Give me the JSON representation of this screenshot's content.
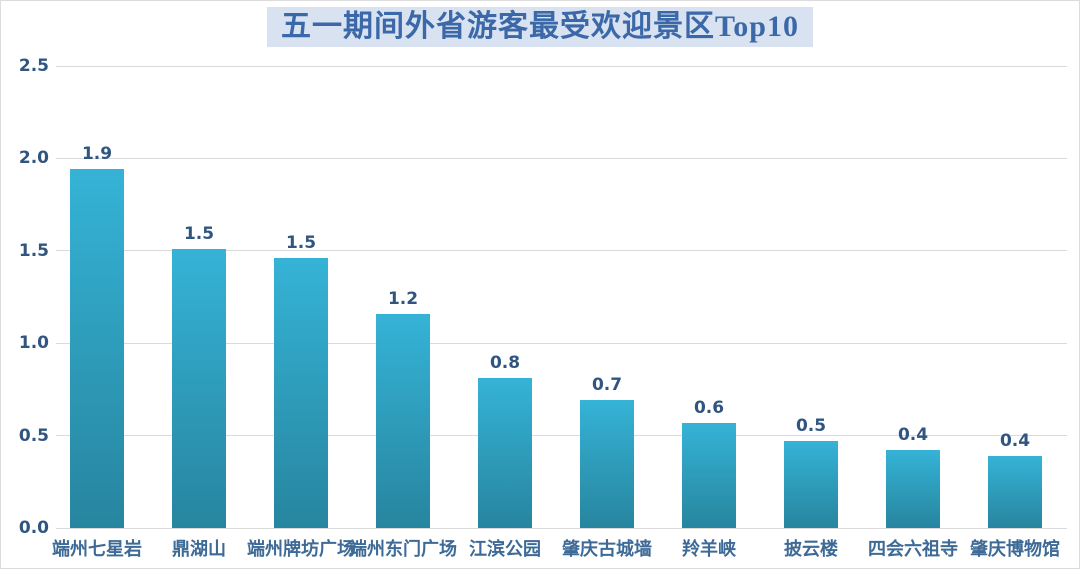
{
  "title": {
    "text": "五一期间外省游客最受欢迎景区Top10",
    "color": "#3a68a8",
    "background": "#d9e2f0"
  },
  "chart_data": {
    "type": "bar",
    "title": "五一期间外省游客最受欢迎景区Top10",
    "categories": [
      "端州七星岩",
      "鼎湖山",
      "端州牌坊广场",
      "端州东门广场",
      "江滨公园",
      "肇庆古城墙",
      "羚羊峡",
      "披云楼",
      "四会六祖寺",
      "肇庆博物馆"
    ],
    "values": [
      1.94,
      1.51,
      1.46,
      1.16,
      0.81,
      0.69,
      0.57,
      0.47,
      0.42,
      0.39
    ],
    "data_labels": [
      "1.9",
      "1.5",
      "1.5",
      "1.2",
      "0.8",
      "0.7",
      "0.6",
      "0.5",
      "0.4",
      "0.4"
    ],
    "xlabel": "",
    "ylabel": "",
    "ylim": [
      0,
      2.5
    ],
    "yticks": [
      "0.0",
      "0.5",
      "1.0",
      "1.5",
      "2.0",
      "2.5"
    ],
    "grid": true,
    "legend": "none",
    "colors": {
      "bar_top": "#35b3d6",
      "bar_bottom": "#27859f",
      "value_label": "#2f5580",
      "ytick_label": "#2f5580",
      "category_label": "#3d6a96",
      "gridline": "#dadada"
    }
  }
}
